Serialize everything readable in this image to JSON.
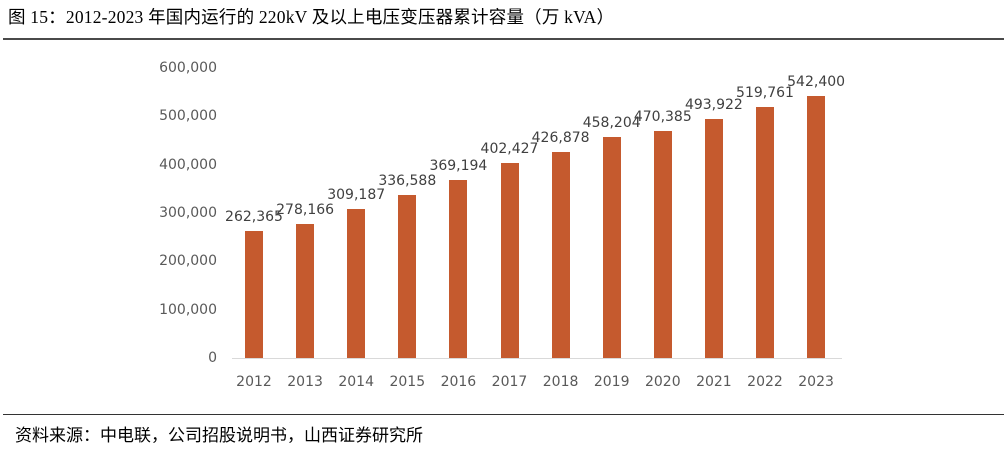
{
  "figure": {
    "title": "图 15：2012-2023 年国内运行的 220kV 及以上电压变压器累计容量（万 kVA）",
    "source": "资料来源：中电联，公司招股说明书，山西证券研究所"
  },
  "chart_data": {
    "type": "bar",
    "title": "2012-2023 年国内运行的 220kV 及以上电压变压器累计容量（万 kVA）",
    "xlabel": "",
    "ylabel": "",
    "unit": "万 kVA",
    "categories": [
      "2012",
      "2013",
      "2014",
      "2015",
      "2016",
      "2017",
      "2018",
      "2019",
      "2020",
      "2021",
      "2022",
      "2023"
    ],
    "values": [
      262365,
      278166,
      309187,
      336588,
      369194,
      402427,
      426878,
      458204,
      470385,
      493922,
      519761,
      542400
    ],
    "data_labels": [
      "262,365",
      "278,166",
      "309,187",
      "336,588",
      "369,194",
      "402,427",
      "426,878",
      "458,204",
      "470,385",
      "493,922",
      "519,761",
      "542,400"
    ],
    "ylim": [
      0,
      600000
    ],
    "yticks": [
      0,
      100000,
      200000,
      300000,
      400000,
      500000,
      600000
    ],
    "ytick_labels": [
      "0",
      "100,000",
      "200,000",
      "300,000",
      "400,000",
      "500,000",
      "600,000"
    ],
    "grid": false,
    "legend": null,
    "bar_color": "#C55A2E"
  }
}
